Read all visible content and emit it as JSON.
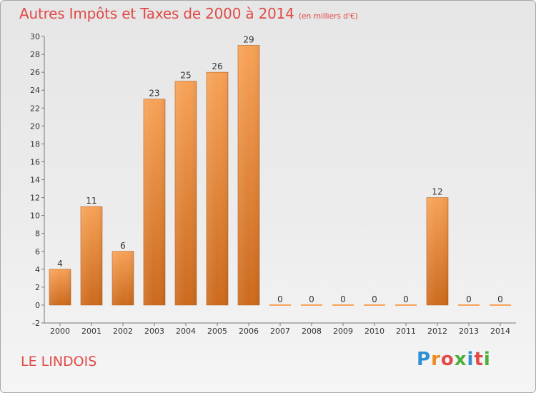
{
  "title": "Autres Impôts et Taxes de 2000 à 2014",
  "subtitle": "(en milliers d'€)",
  "location": "LE LINDOIS",
  "logo_text": "Proxiti",
  "colors": {
    "bar_top": "#f7a257",
    "bar_bottom": "#cc6a1d",
    "title": "#e04a48"
  },
  "chart_data": {
    "type": "bar",
    "title": "Autres Impôts et Taxes de 2000 à 2014",
    "subtitle": "(en milliers d'€)",
    "categories": [
      "2000",
      "2001",
      "2002",
      "2003",
      "2004",
      "2005",
      "2006",
      "2007",
      "2008",
      "2009",
      "2010",
      "2011",
      "2012",
      "2013",
      "2014"
    ],
    "values": [
      4,
      11,
      6,
      23,
      25,
      26,
      29,
      0,
      0,
      0,
      0,
      0,
      12,
      0,
      0
    ],
    "ylim": [
      -2,
      30
    ],
    "yticks": [
      -2,
      0,
      2,
      4,
      6,
      8,
      10,
      12,
      14,
      16,
      18,
      20,
      22,
      24,
      26,
      28,
      30
    ],
    "grid": false,
    "data_labels": true
  }
}
